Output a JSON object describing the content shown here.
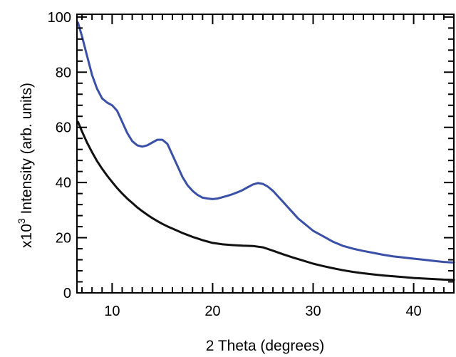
{
  "chart_data": {
    "type": "line",
    "title": "",
    "xlabel": "2 Theta (degrees)",
    "ylabel": {
      "prefix": "x10",
      "superscript": "3",
      "text": " Intensity (arb. units)"
    },
    "xlim": [
      6.5,
      44
    ],
    "ylim": [
      0,
      101
    ],
    "xticks": [
      10,
      20,
      30,
      40
    ],
    "yticks": [
      0,
      20,
      40,
      60,
      80,
      100
    ],
    "grid": false,
    "legend": "none",
    "series": [
      {
        "color": "#3a4fa6",
        "x": [
          6.6,
          7.0,
          7.5,
          8.0,
          8.5,
          9.0,
          9.5,
          10.0,
          10.5,
          11.0,
          11.5,
          12.0,
          12.5,
          13.0,
          13.5,
          14.0,
          14.5,
          15.0,
          15.5,
          16.0,
          16.5,
          17.0,
          17.5,
          18.0,
          18.5,
          19.0,
          19.5,
          20.0,
          20.5,
          21.0,
          21.5,
          22.0,
          22.5,
          23.0,
          23.5,
          24.0,
          24.5,
          25.0,
          25.5,
          26.0,
          26.5,
          27.0,
          27.5,
          28.0,
          28.5,
          29.0,
          29.5,
          30.0,
          31.0,
          32.0,
          33.0,
          34.0,
          35.0,
          36.0,
          37.0,
          38.0,
          39.0,
          40.0,
          41.0,
          42.0,
          43.0,
          44.0
        ],
        "y": [
          98,
          93,
          86,
          79,
          74,
          70.5,
          69,
          68,
          66,
          62,
          58,
          55,
          53.5,
          53,
          53.5,
          54.5,
          55.5,
          55.5,
          54,
          50,
          46,
          42,
          39,
          37,
          35.5,
          34.5,
          34.2,
          34,
          34.2,
          34.7,
          35.2,
          35.8,
          36.5,
          37.3,
          38.3,
          39.3,
          39.8,
          39.5,
          38.5,
          37,
          35,
          33,
          31,
          29,
          27,
          25.5,
          24,
          22.5,
          20.5,
          18.5,
          17,
          16,
          15.2,
          14.5,
          13.8,
          13.2,
          12.8,
          12.4,
          12,
          11.6,
          11.2,
          11
        ]
      },
      {
        "color": "#111111",
        "x": [
          6.6,
          7.0,
          7.5,
          8.0,
          8.5,
          9.0,
          9.5,
          10.0,
          10.5,
          11.0,
          11.5,
          12.0,
          12.5,
          13.0,
          13.5,
          14.0,
          14.5,
          15.0,
          15.5,
          16.0,
          16.5,
          17.0,
          17.5,
          18.0,
          18.5,
          19.0,
          19.5,
          20.0,
          21.0,
          22.0,
          23.0,
          24.0,
          25.0,
          26.0,
          27.0,
          28.0,
          29.0,
          30.0,
          31.0,
          32.0,
          33.0,
          34.0,
          35.0,
          36.0,
          37.0,
          38.0,
          39.0,
          40.0,
          41.0,
          42.0,
          43.0,
          44.0
        ],
        "y": [
          62,
          58.5,
          54.5,
          51,
          47.8,
          45,
          42.5,
          40.2,
          38,
          36,
          34.2,
          32.6,
          31,
          29.6,
          28.3,
          27.1,
          26,
          25,
          24.1,
          23.3,
          22.5,
          21.7,
          21,
          20.3,
          19.7,
          19.1,
          18.6,
          18.1,
          17.6,
          17.3,
          17.1,
          17.0,
          16.5,
          15.3,
          14,
          12.8,
          11.7,
          10.6,
          9.7,
          8.9,
          8.2,
          7.6,
          7.1,
          6.7,
          6.3,
          6.0,
          5.7,
          5.4,
          5.2,
          5.0,
          4.8,
          4.7
        ]
      }
    ]
  }
}
